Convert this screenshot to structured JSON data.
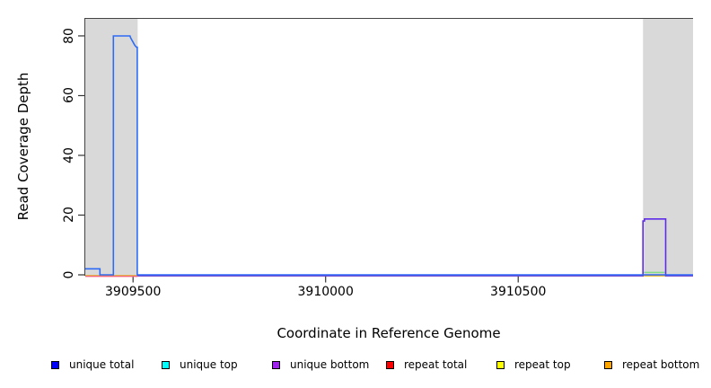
{
  "figure": {
    "xlabel": "Coordinate in Reference Genome",
    "ylabel": "Read Coverage Depth"
  },
  "chart_data": {
    "type": "line",
    "title": "",
    "xlabel": "Coordinate in Reference Genome",
    "ylabel": "Read Coverage Depth",
    "xlim": [
      3909376,
      3910954
    ],
    "ylim": [
      0,
      86
    ],
    "grid": false,
    "legend_position": "bottom",
    "xticks": {
      "values": [
        3909500,
        3910000,
        3910500
      ],
      "labels": [
        "3909500",
        "3910000",
        "3910500"
      ]
    },
    "yticks": {
      "values": [
        0,
        20,
        40,
        60,
        80
      ],
      "labels": [
        "0",
        "20",
        "40",
        "60",
        "80"
      ]
    },
    "shaded_regions": [
      {
        "start": 3909376,
        "end": 3909512,
        "color": "#d9d9d9"
      },
      {
        "start": 3910824,
        "end": 3910954,
        "color": "#d9d9d9"
      }
    ],
    "series": [
      {
        "name": "unique total",
        "legend_color": "#0000FF",
        "line_color": "#2e6bf5",
        "points": [
          [
            3909376,
            2
          ],
          [
            3909414,
            2
          ],
          [
            3909414,
            0
          ],
          [
            3909449,
            0
          ],
          [
            3909449,
            80
          ],
          [
            3909492,
            80
          ],
          [
            3909494,
            79.3
          ],
          [
            3909497,
            78.6
          ],
          [
            3909500,
            77.9
          ],
          [
            3909503,
            77.2
          ],
          [
            3909506,
            76.6
          ],
          [
            3909509,
            76.2
          ],
          [
            3909511,
            76.2
          ],
          [
            3909511,
            0
          ],
          [
            3910954,
            0
          ]
        ]
      },
      {
        "name": "unique top",
        "legend_color": "#00FFFF",
        "line_color": "#00e5e5",
        "points": [
          [
            3909376,
            0
          ],
          [
            3910954,
            0
          ]
        ]
      },
      {
        "name": "unique bottom",
        "legend_color": "#A020F0",
        "line_color": "#5f2ce8",
        "points": [
          [
            3909376,
            0
          ],
          [
            3910824,
            0
          ],
          [
            3910824,
            18.3
          ],
          [
            3910828,
            18.3
          ],
          [
            3910828,
            19
          ],
          [
            3910883,
            19
          ],
          [
            3910883,
            0
          ],
          [
            3910954,
            0
          ]
        ]
      },
      {
        "name": "repeat total",
        "legend_color": "#FF0000",
        "line_color": "#f4687a",
        "points": [
          [
            3909376,
            0
          ],
          [
            3910954,
            0
          ]
        ]
      },
      {
        "name": "repeat top",
        "legend_color": "#FFFF00",
        "line_color": "#ffff00",
        "points": [
          [
            3909376,
            0
          ],
          [
            3910954,
            0
          ]
        ]
      },
      {
        "name": "repeat bottom",
        "legend_color": "#FFA500",
        "line_color": "#ffa500",
        "points": [
          [
            3909376,
            0
          ],
          [
            3910954,
            0
          ]
        ]
      }
    ],
    "overlap_marks": [
      {
        "start": 3910826,
        "end": 3910881,
        "value": 0.8,
        "color": "#82dd85"
      }
    ]
  },
  "legend": {
    "items": [
      {
        "label": "unique total",
        "color": "#0000FF"
      },
      {
        "label": "unique top",
        "color": "#00FFFF"
      },
      {
        "label": "unique bottom",
        "color": "#A020F0"
      },
      {
        "label": "repeat total",
        "color": "#FF0000"
      },
      {
        "label": "repeat top",
        "color": "#FFFF00"
      },
      {
        "label": "repeat bottom",
        "color": "#FFA500"
      }
    ]
  }
}
